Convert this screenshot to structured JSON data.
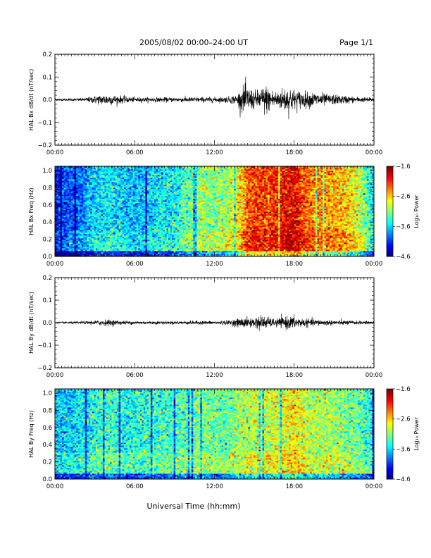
{
  "header": {
    "title": "2005/08/02  00:00–24:00 UT",
    "page": "Page 1/1"
  },
  "x_axis": {
    "label": "Universal Time (hh:mm)",
    "ticks": [
      "00:00",
      "06:00",
      "12:00",
      "18:00",
      "00:00"
    ],
    "range_hours": [
      0,
      24
    ],
    "major_tick_every_hours": 6,
    "minor_tick_every_hours": 0.25
  },
  "chart_data": [
    {
      "id": "bx-waveform",
      "type": "line",
      "ylabel": "HAL Bx dB/dt (nT/sec)",
      "ylim": [
        -0.2,
        0.2
      ],
      "yticks": [
        -0.2,
        -0.1,
        0.0,
        0.1,
        0.2
      ],
      "ytick_labels": [
        "−0.2",
        "−0.1",
        "0.0",
        "0.1",
        "0.2"
      ],
      "color": "#000000",
      "envelope": {
        "description_hours": "approximate peak amplitude vs UT hour",
        "x": [
          0,
          1,
          2,
          2.5,
          3,
          3.5,
          4,
          4.5,
          5,
          5.5,
          6,
          7,
          8,
          9,
          10,
          11,
          12,
          13,
          13.7,
          14,
          14.3,
          14.6,
          15,
          15.4,
          15.8,
          16.2,
          16.6,
          17,
          17.3,
          17.6,
          18,
          18.5,
          19,
          19.5,
          20,
          20.5,
          21,
          22,
          23,
          24
        ],
        "y": [
          0.004,
          0.005,
          0.006,
          0.01,
          0.015,
          0.02,
          0.022,
          0.018,
          0.015,
          0.012,
          0.01,
          0.009,
          0.009,
          0.009,
          0.01,
          0.01,
          0.01,
          0.012,
          0.02,
          0.04,
          0.06,
          0.05,
          0.035,
          0.04,
          0.06,
          0.045,
          0.035,
          0.04,
          0.05,
          0.055,
          0.04,
          0.035,
          0.03,
          0.03,
          0.028,
          0.02,
          0.02,
          0.015,
          0.01,
          0.008
        ]
      }
    },
    {
      "id": "bx-spectrogram",
      "type": "heatmap",
      "ylabel": "HAL Bx Freq (Hz)",
      "ylim": [
        0,
        1.05
      ],
      "yticks": [
        0.0,
        0.2,
        0.4,
        0.6,
        0.8,
        1.0
      ],
      "ytick_labels": [
        "0.0",
        "0.2",
        "0.4",
        "0.6",
        "0.8",
        "1.0"
      ],
      "colorbar": {
        "label": "Log₁₀ Power",
        "range": [
          -4.6,
          -1.6
        ],
        "ticks": [
          "−1.6",
          "−2.6",
          "−3.6",
          "−4.6"
        ]
      },
      "intensity_profile": {
        "x": [
          0,
          1,
          2,
          3,
          4,
          5,
          6,
          7,
          8,
          9,
          10,
          11,
          12,
          13,
          14,
          14.5,
          15,
          16,
          17,
          18,
          19,
          20,
          21,
          22,
          23,
          24
        ],
        "level": [
          -4.2,
          -4.0,
          -3.9,
          -3.6,
          -3.5,
          -3.6,
          -3.7,
          -3.6,
          -3.5,
          -3.5,
          -3.2,
          -3.0,
          -3.1,
          -3.0,
          -2.6,
          -2.2,
          -2.1,
          -2.2,
          -2.0,
          -1.9,
          -2.3,
          -2.4,
          -2.5,
          -2.6,
          -2.9,
          -3.6
        ]
      }
    },
    {
      "id": "by-waveform",
      "type": "line",
      "ylabel": "HAL By dB/dt (nT/sec)",
      "ylim": [
        -0.2,
        0.2
      ],
      "yticks": [
        -0.2,
        -0.1,
        0.0,
        0.1,
        0.2
      ],
      "ytick_labels": [
        "−0.2",
        "−0.1",
        "0.0",
        "0.1",
        "0.2"
      ],
      "color": "#000000",
      "envelope": {
        "description_hours": "approximate peak amplitude vs UT hour",
        "x": [
          0,
          1,
          2,
          3,
          3.5,
          4,
          4.5,
          5,
          6,
          7,
          8,
          9,
          10,
          11,
          12,
          13,
          13.7,
          14,
          14.5,
          15,
          15.5,
          16,
          16.5,
          17,
          17.5,
          18,
          18.5,
          19,
          20,
          21,
          22,
          23,
          24
        ],
        "y": [
          0.003,
          0.004,
          0.005,
          0.008,
          0.012,
          0.012,
          0.01,
          0.008,
          0.007,
          0.006,
          0.006,
          0.006,
          0.007,
          0.007,
          0.007,
          0.009,
          0.015,
          0.02,
          0.02,
          0.02,
          0.03,
          0.02,
          0.015,
          0.02,
          0.025,
          0.025,
          0.018,
          0.015,
          0.012,
          0.01,
          0.009,
          0.007,
          0.005
        ]
      }
    },
    {
      "id": "by-spectrogram",
      "type": "heatmap",
      "ylabel": "HAL By Freq (Hz)",
      "ylim": [
        0,
        1.05
      ],
      "yticks": [
        0.0,
        0.2,
        0.4,
        0.6,
        0.8,
        1.0
      ],
      "ytick_labels": [
        "0.0",
        "0.2",
        "0.4",
        "0.6",
        "0.8",
        "1.0"
      ],
      "colorbar": {
        "label": "Log₁₀ Power",
        "range": [
          -4.6,
          -1.6
        ],
        "ticks": [
          "−1.6",
          "−2.6",
          "−3.6",
          "−4.6"
        ]
      },
      "intensity_profile": {
        "x": [
          0,
          1,
          2,
          3,
          4,
          5,
          6,
          7,
          8,
          9,
          10,
          11,
          12,
          13,
          14,
          15,
          16,
          17,
          18,
          19,
          20,
          21,
          22,
          23,
          24
        ],
        "level": [
          -3.6,
          -3.6,
          -3.5,
          -3.4,
          -3.3,
          -3.4,
          -3.4,
          -3.4,
          -3.3,
          -3.3,
          -3.2,
          -3.1,
          -3.2,
          -3.2,
          -3.0,
          -2.9,
          -2.9,
          -2.8,
          -2.7,
          -2.9,
          -3.0,
          -3.0,
          -3.1,
          -3.2,
          -3.5
        ]
      }
    }
  ]
}
